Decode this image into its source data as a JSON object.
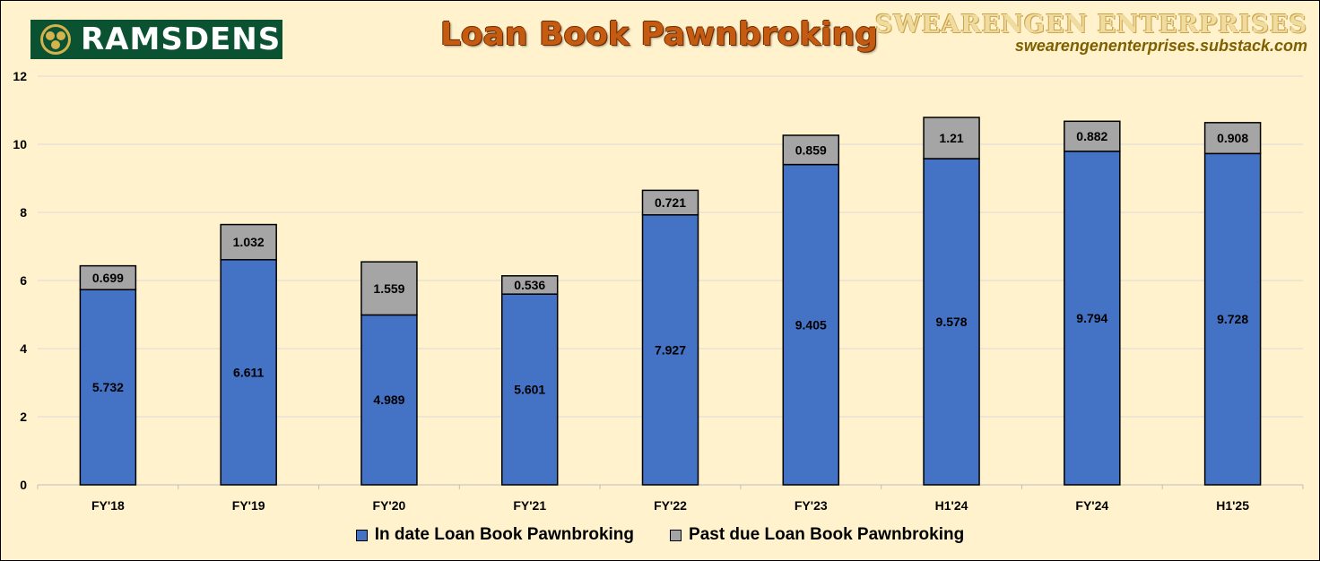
{
  "logo": {
    "text": "RAMSDENS"
  },
  "brand": {
    "name": "SWEARENGEN ENTERPRISES",
    "url": "swearengenenterprises.substack.com"
  },
  "colors": {
    "in_date": "#4472c4",
    "past_due": "#a5a5a5",
    "background": "#fff2cc",
    "title": "#c55a11",
    "logo_bg": "#0b5233"
  },
  "chart_data": {
    "type": "bar",
    "stacked": true,
    "title": "Loan Book Pawnbroking",
    "categories": [
      "FY'18",
      "FY'19",
      "FY'20",
      "FY'21",
      "FY'22",
      "FY'23",
      "H1'24",
      "FY'24",
      "H1'25"
    ],
    "series": [
      {
        "name": "In date Loan Book Pawnbroking",
        "values": [
          5.732,
          6.611,
          4.989,
          5.601,
          7.927,
          9.405,
          9.578,
          9.794,
          9.728
        ]
      },
      {
        "name": "Past due Loan Book Pawnbroking",
        "values": [
          0.699,
          1.032,
          1.559,
          0.536,
          0.721,
          0.859,
          1.21,
          0.882,
          0.908
        ]
      }
    ],
    "ylim": [
      0,
      12
    ],
    "yticks": [
      "0",
      "2",
      "4",
      "6",
      "8",
      "10",
      "12"
    ],
    "grid": true,
    "legend_position": "bottom"
  }
}
